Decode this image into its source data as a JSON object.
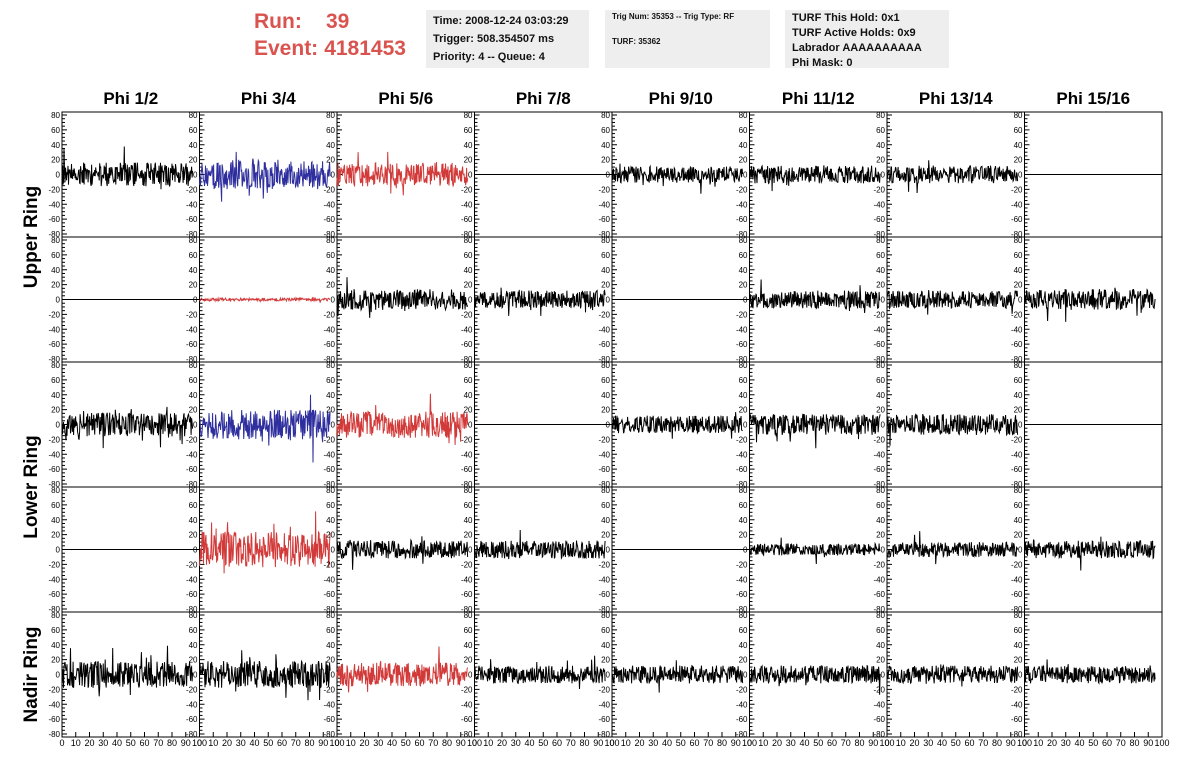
{
  "header": {
    "run_label": "Run:",
    "run_value": "39",
    "event_label": "Event:",
    "event_value": "4181453"
  },
  "info": {
    "time": "Time: 2008-12-24 03:03:29",
    "trigger": "Trigger: 508.354507 ms",
    "priority": "Priority: 4 -- Queue: 4",
    "trig_num": "Trig Num: 35353 -- Trig Type: RF",
    "turf": "TURF: 35362",
    "turf_this_hold": "TURF This Hold: 0x1",
    "turf_active_holds": "TURF Active Holds: 0x9",
    "labrador": "Labrador AAAAAAAAAA",
    "phi_mask": "Phi Mask: 0"
  },
  "colors": {
    "black": "#000000",
    "blue": "#2e2e9e",
    "red": "#d23a3a"
  },
  "chart_data": {
    "type": "line",
    "columns": [
      "Phi 1/2",
      "Phi 3/4",
      "Phi 5/6",
      "Phi 7/8",
      "Phi 9/10",
      "Phi 11/12",
      "Phi 13/14",
      "Phi 15/16"
    ],
    "ring_labels": [
      {
        "label": "Upper Ring",
        "rows": [
          0,
          1
        ]
      },
      {
        "label": "Lower Ring",
        "rows": [
          2,
          3
        ]
      },
      {
        "label": "Nadir Ring",
        "rows": [
          4
        ]
      }
    ],
    "ylim": [
      -80,
      80
    ],
    "xlim": [
      0,
      100
    ],
    "y_ticks": [
      -80,
      -60,
      -40,
      -20,
      0,
      20,
      40,
      60,
      80
    ],
    "x_ticks": [
      0,
      10,
      20,
      30,
      40,
      50,
      60,
      70,
      80,
      90,
      100
    ],
    "panels": [
      [
        {
          "color": "black",
          "amp": 16,
          "flat": false,
          "seed": 11
        },
        {
          "color": "blue",
          "amp": 20,
          "flat": false,
          "seed": 12
        },
        {
          "color": "red",
          "amp": 16,
          "flat": false,
          "seed": 13
        },
        {
          "color": "black",
          "amp": 0,
          "flat": true,
          "seed": 14
        },
        {
          "color": "black",
          "amp": 11,
          "flat": false,
          "seed": 15
        },
        {
          "color": "black",
          "amp": 12,
          "flat": false,
          "seed": 16
        },
        {
          "color": "black",
          "amp": 12,
          "flat": false,
          "seed": 17
        },
        {
          "color": "black",
          "amp": 0,
          "flat": true,
          "seed": 18
        }
      ],
      [
        {
          "color": "black",
          "amp": 0,
          "flat": true,
          "seed": 21
        },
        {
          "color": "red",
          "amp": 2,
          "flat": false,
          "seed": 22
        },
        {
          "color": "black",
          "amp": 14,
          "flat": false,
          "seed": 23
        },
        {
          "color": "black",
          "amp": 12,
          "flat": false,
          "seed": 24
        },
        {
          "color": "black",
          "amp": 0,
          "flat": true,
          "seed": 25
        },
        {
          "color": "black",
          "amp": 12,
          "flat": false,
          "seed": 26
        },
        {
          "color": "black",
          "amp": 12,
          "flat": false,
          "seed": 27
        },
        {
          "color": "black",
          "amp": 14,
          "flat": false,
          "seed": 28
        }
      ],
      [
        {
          "color": "black",
          "amp": 16,
          "flat": false,
          "seed": 31
        },
        {
          "color": "blue",
          "amp": 20,
          "flat": false,
          "seed": 32
        },
        {
          "color": "red",
          "amp": 18,
          "flat": false,
          "seed": 33
        },
        {
          "color": "black",
          "amp": 0,
          "flat": true,
          "seed": 34
        },
        {
          "color": "black",
          "amp": 12,
          "flat": false,
          "seed": 35
        },
        {
          "color": "black",
          "amp": 14,
          "flat": false,
          "seed": 36
        },
        {
          "color": "black",
          "amp": 14,
          "flat": false,
          "seed": 37
        },
        {
          "color": "black",
          "amp": 0,
          "flat": true,
          "seed": 38
        }
      ],
      [
        {
          "color": "black",
          "amp": 0,
          "flat": true,
          "seed": 41
        },
        {
          "color": "red",
          "amp": 24,
          "flat": false,
          "seed": 42
        },
        {
          "color": "black",
          "amp": 12,
          "flat": false,
          "seed": 43
        },
        {
          "color": "black",
          "amp": 12,
          "flat": false,
          "seed": 44
        },
        {
          "color": "black",
          "amp": 0,
          "flat": true,
          "seed": 45
        },
        {
          "color": "black",
          "amp": 8,
          "flat": false,
          "seed": 46
        },
        {
          "color": "black",
          "amp": 10,
          "flat": false,
          "seed": 47
        },
        {
          "color": "black",
          "amp": 12,
          "flat": false,
          "seed": 48
        }
      ],
      [
        {
          "color": "black",
          "amp": 18,
          "flat": false,
          "seed": 51
        },
        {
          "color": "black",
          "amp": 18,
          "flat": false,
          "seed": 52
        },
        {
          "color": "red",
          "amp": 16,
          "flat": false,
          "seed": 53
        },
        {
          "color": "black",
          "amp": 12,
          "flat": false,
          "seed": 54
        },
        {
          "color": "black",
          "amp": 12,
          "flat": false,
          "seed": 55
        },
        {
          "color": "black",
          "amp": 12,
          "flat": false,
          "seed": 56
        },
        {
          "color": "black",
          "amp": 12,
          "flat": false,
          "seed": 57
        },
        {
          "color": "black",
          "amp": 12,
          "flat": false,
          "seed": 58
        }
      ]
    ]
  }
}
